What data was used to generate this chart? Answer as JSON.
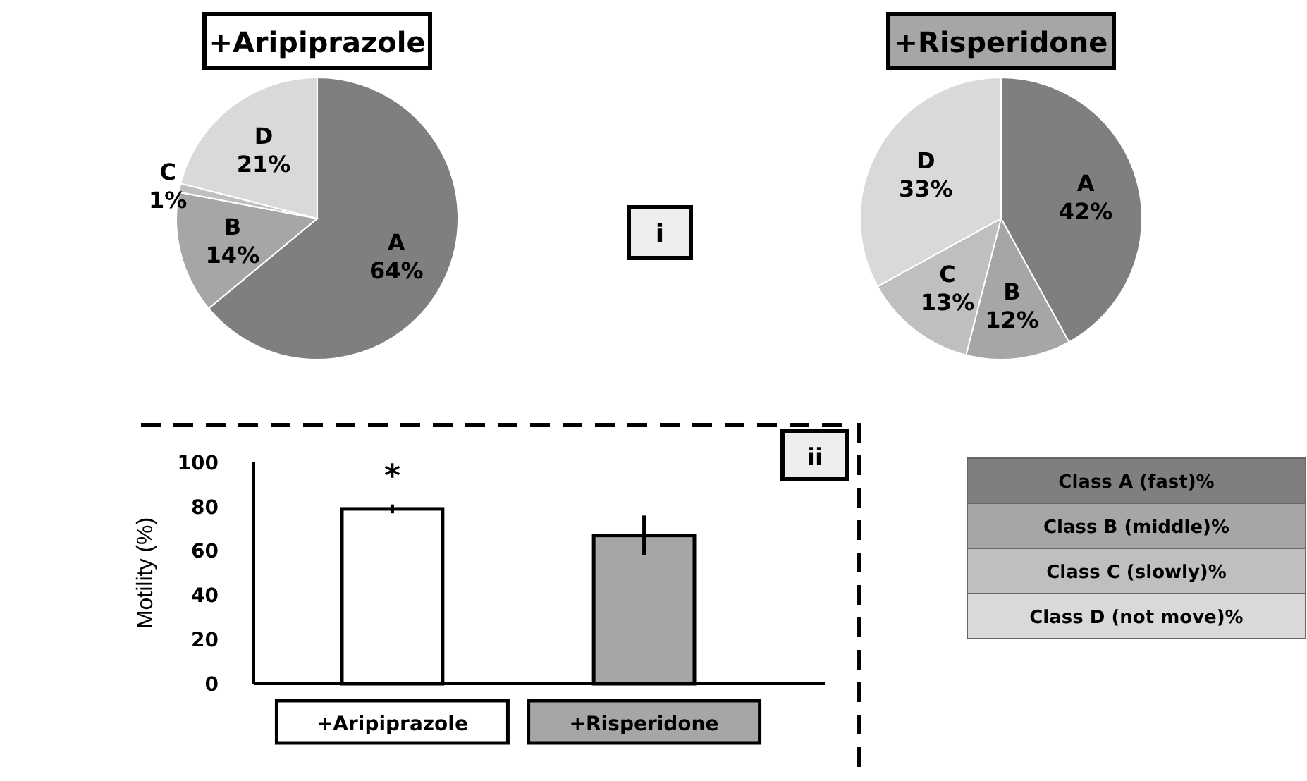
{
  "chart_data": [
    {
      "type": "pie",
      "title": "+Aripiprazole",
      "categories": [
        "A",
        "B",
        "C",
        "D"
      ],
      "values": [
        64,
        14,
        1,
        21
      ],
      "value_labels": [
        "64%",
        "14%",
        "1%",
        "21%"
      ],
      "colors": [
        "#7f7f7f",
        "#a6a6a6",
        "#bfbfbf",
        "#d9d9d9"
      ],
      "annotations": [
        "i"
      ]
    },
    {
      "type": "pie",
      "title": "+Risperidone",
      "categories": [
        "A",
        "B",
        "C",
        "D"
      ],
      "values": [
        42,
        12,
        13,
        33
      ],
      "value_labels": [
        "42%",
        "12%",
        "13%",
        "33%"
      ],
      "colors": [
        "#7f7f7f",
        "#a6a6a6",
        "#bfbfbf",
        "#d9d9d9"
      ]
    },
    {
      "type": "bar",
      "categories": [
        "+Aripiprazole",
        "+Risperidone"
      ],
      "values": [
        79,
        67
      ],
      "errors": [
        2,
        9
      ],
      "colors": [
        "#ffffff",
        "#a6a6a6"
      ],
      "ylabel": "Motility (%)",
      "ylim": [
        0,
        100
      ],
      "yticks": [
        0,
        20,
        40,
        60,
        80,
        100
      ],
      "annotations": [
        "*",
        "ii"
      ]
    },
    {
      "type": "other",
      "annotations": [
        "Class A (fast)%",
        "Class B (middle)%",
        "Class C (slowly)%",
        "Class D (not move)%"
      ]
    }
  ]
}
